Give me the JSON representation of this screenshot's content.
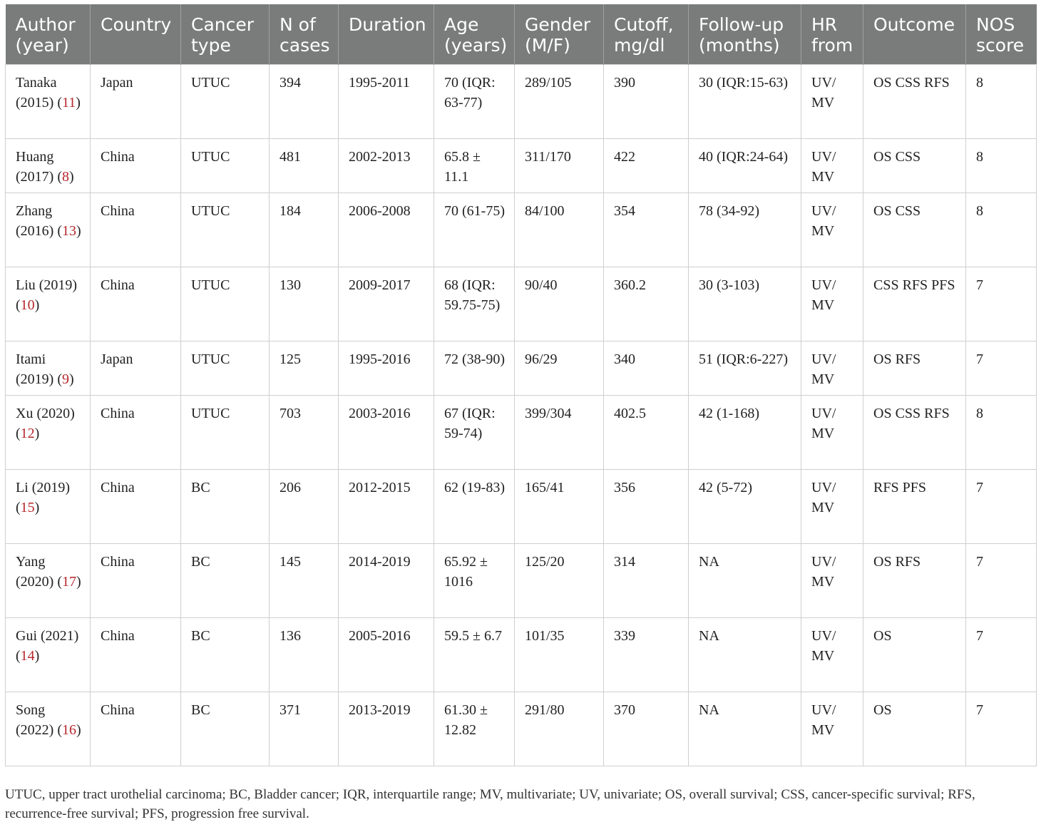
{
  "table": {
    "columns": [
      "Author (year)",
      "Country",
      "Cancer type",
      "N of cases",
      "Duration",
      "Age (years)",
      "Gender (M/F)",
      "Cutoff, mg/dl",
      "Follow-up (months)",
      "HR from",
      "Outcome",
      "NOS score"
    ],
    "rows": [
      {
        "author": "Tanaka (2015)",
        "ref": "11",
        "country": "Japan",
        "cancer_type": "UTUC",
        "n": "394",
        "duration": "1995-2011",
        "age": "70 (IQR: 63-77)",
        "gender": "289/105",
        "cutoff": "390",
        "follow_up": "30 (IQR:15-63)",
        "hr_from": "UV/ MV",
        "outcome": "OS CSS RFS",
        "nos": "8"
      },
      {
        "author": "Huang (2017)",
        "ref": "8",
        "country": "China",
        "cancer_type": "UTUC",
        "n": "481",
        "duration": "2002-2013",
        "age": "65.8 ± 11.1",
        "gender": "311/170",
        "cutoff": "422",
        "follow_up": "40 (IQR:24-64)",
        "hr_from": "UV/ MV",
        "outcome": "OS CSS",
        "nos": "8"
      },
      {
        "author": "Zhang (2016)",
        "ref": "13",
        "country": "China",
        "cancer_type": "UTUC",
        "n": "184",
        "duration": "2006-2008",
        "age": "70 (61-75)",
        "gender": "84/100",
        "cutoff": "354",
        "follow_up": "78 (34-92)",
        "hr_from": "UV/ MV",
        "outcome": "OS CSS",
        "nos": "8"
      },
      {
        "author": "Liu (2019)",
        "ref": "10",
        "country": "China",
        "cancer_type": "UTUC",
        "n": "130",
        "duration": "2009-2017",
        "age": "68 (IQR: 59.75-75)",
        "gender": "90/40",
        "cutoff": "360.2",
        "follow_up": "30 (3-103)",
        "hr_from": "UV/ MV",
        "outcome": "CSS RFS PFS",
        "nos": "7"
      },
      {
        "author": "Itami (2019)",
        "ref": "9",
        "country": "Japan",
        "cancer_type": "UTUC",
        "n": "125",
        "duration": "1995-2016",
        "age": "72 (38-90)",
        "gender": "96/29",
        "cutoff": "340",
        "follow_up": "51 (IQR:6-227)",
        "hr_from": "UV/ MV",
        "outcome": "OS RFS",
        "nos": "7"
      },
      {
        "author": "Xu (2020)",
        "ref": "12",
        "country": "China",
        "cancer_type": "UTUC",
        "n": "703",
        "duration": "2003-2016",
        "age": "67 (IQR: 59-74)",
        "gender": "399/304",
        "cutoff": "402.5",
        "follow_up": "42 (1-168)",
        "hr_from": "UV/ MV",
        "outcome": "OS CSS RFS",
        "nos": "8"
      },
      {
        "author": "Li (2019)",
        "ref": "15",
        "country": "China",
        "cancer_type": "BC",
        "n": "206",
        "duration": "2012-2015",
        "age": "62 (19-83)",
        "gender": "165/41",
        "cutoff": "356",
        "follow_up": "42 (5-72)",
        "hr_from": "UV/ MV",
        "outcome": "RFS PFS",
        "nos": "7"
      },
      {
        "author": "Yang (2020)",
        "ref": "17",
        "country": "China",
        "cancer_type": "BC",
        "n": "145",
        "duration": "2014-2019",
        "age": "65.92 ± 1016",
        "gender": "125/20",
        "cutoff": "314",
        "follow_up": "NA",
        "hr_from": "UV/ MV",
        "outcome": "OS RFS",
        "nos": "7"
      },
      {
        "author": "Gui (2021)",
        "ref": "14",
        "country": "China",
        "cancer_type": "BC",
        "n": "136",
        "duration": "2005-2016",
        "age": "59.5 ± 6.7",
        "gender": "101/35",
        "cutoff": "339",
        "follow_up": "NA",
        "hr_from": "UV/ MV",
        "outcome": "OS",
        "nos": "7"
      },
      {
        "author": "Song (2022)",
        "ref": "16",
        "country": "China",
        "cancer_type": "BC",
        "n": "371",
        "duration": "2013-2019",
        "age": "61.30 ± 12.82",
        "gender": "291/80",
        "cutoff": "370",
        "follow_up": "NA",
        "hr_from": "UV/ MV",
        "outcome": "OS",
        "nos": "7"
      }
    ]
  },
  "footnote": "UTUC, upper tract urothelial carcinoma; BC, Bladder cancer; IQR, interquartile range; MV, multivariate; UV, univariate; OS, overall survival; CSS, cancer-specific survival; RFS, recurrence-free survival; PFS, progression free survival.",
  "colors": {
    "header_bg": "#7a7c7b",
    "header_text": "#ffffff",
    "ref_link": "#b5262a",
    "border": "#cfcfcf"
  }
}
